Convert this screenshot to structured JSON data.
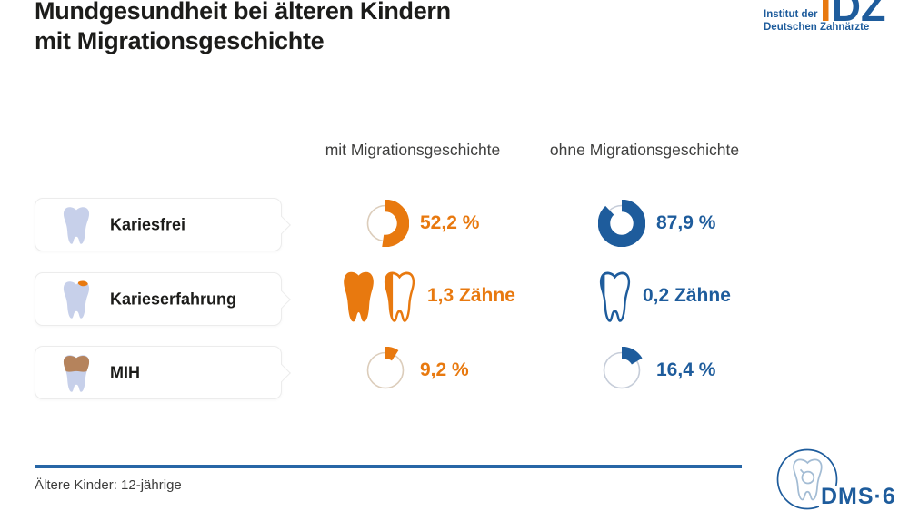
{
  "header": {
    "title_line1": "Mundgesundheit bei älteren Kindern",
    "title_line2": "mit Migrationsgeschichte",
    "idz_logo": {
      "letters_orange": "I",
      "letters_blue": "DZ",
      "line1": "Institut der",
      "line2": "Deutschen Zahnärzte"
    }
  },
  "columns": {
    "mit": "mit Migrationsgeschichte",
    "ohne": "ohne Migrationsgeschichte"
  },
  "rows": [
    {
      "label": "Kariesfrei",
      "icon": "tooth-healthy-icon",
      "cells": [
        {
          "kind": "donut",
          "pct": 52.2,
          "text": "52,2 %",
          "color": "orange"
        },
        {
          "kind": "donut",
          "pct": 87.9,
          "text": "87,9 %",
          "color": "blue"
        }
      ]
    },
    {
      "label": "Karieserfahrung",
      "icon": "tooth-caries-icon",
      "cells": [
        {
          "kind": "teeth",
          "count": 1.3,
          "text": "1,3 Zähne",
          "color": "orange"
        },
        {
          "kind": "teeth",
          "count": 0.2,
          "text": "0,2 Zähne",
          "color": "blue"
        }
      ]
    },
    {
      "label": "MIH",
      "icon": "tooth-mih-icon",
      "cells": [
        {
          "kind": "donut",
          "pct": 9.2,
          "text": "9,2 %",
          "color": "orange"
        },
        {
          "kind": "donut",
          "pct": 16.4,
          "text": "16,4 %",
          "color": "blue"
        }
      ]
    }
  ],
  "footer": {
    "note": "Ältere Kinder: 12-jährige",
    "dms_label": "DMS·6"
  },
  "colors": {
    "orange": "#e8790f",
    "blue": "#1e5c9c",
    "ring_orange": "#dccdbb",
    "ring_blue": "#c6cdd9"
  },
  "icons": {
    "card_rows": [
      "tooth-healthy-icon",
      "tooth-caries-icon",
      "tooth-mih-icon"
    ],
    "logos": [
      "idz-logo",
      "dms6-tooth-magnifier-logo"
    ]
  },
  "chart_data": {
    "type": "donut",
    "title": "Mundgesundheit bei älteren Kindern mit Migrationsgeschichte",
    "categories": [
      "Kariesfrei",
      "Karieserfahrung",
      "MIH"
    ],
    "series": [
      {
        "name": "mit Migrationsgeschichte",
        "values": [
          52.2,
          1.3,
          9.2
        ],
        "units": [
          "%",
          "Zähne",
          "%"
        ]
      },
      {
        "name": "ohne Migrationsgeschichte",
        "values": [
          87.9,
          0.2,
          16.4
        ],
        "units": [
          "%",
          "Zähne",
          "%"
        ]
      }
    ],
    "note": "Ältere Kinder: 12-jährige",
    "legend_position": "top",
    "grid": false
  }
}
